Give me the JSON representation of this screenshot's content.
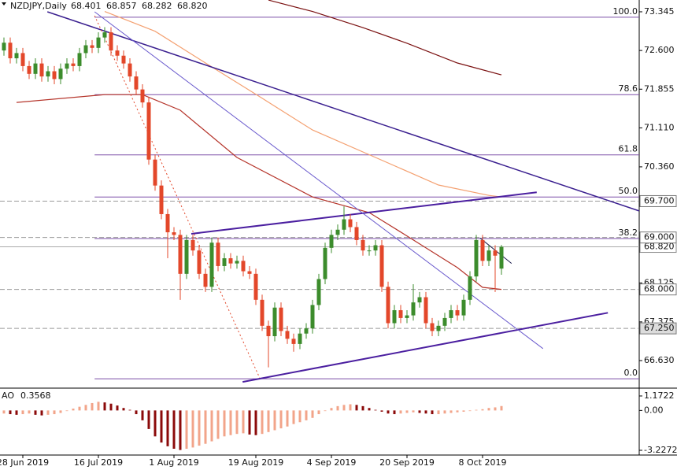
{
  "chart_data": {
    "type": "candlestick",
    "header": {
      "symbol": "NZDJPY,Daily",
      "quote": [
        "68.401",
        "68.857",
        "68.282",
        "68.820"
      ]
    },
    "up_color": "#3c8c2c",
    "down_color": "#e3472a",
    "open": [
      72.6,
      72.75,
      72.45,
      72.55,
      72.3,
      72.15,
      72.35,
      72.1,
      72.2,
      72.05,
      72.25,
      72.35,
      72.3,
      72.55,
      72.7,
      72.65,
      72.85,
      72.95,
      72.6,
      72.5,
      72.35,
      72.1,
      71.85,
      71.6,
      70.5,
      70.0,
      69.45,
      69.1,
      69.05,
      68.3,
      68.95,
      68.75,
      68.3,
      68.05,
      68.9,
      68.45,
      68.6,
      68.5,
      68.55,
      68.35,
      68.3,
      67.8,
      67.3,
      67.1,
      67.65,
      67.2,
      67.05,
      66.95,
      67.15,
      67.25,
      67.7,
      68.2,
      68.8,
      69.05,
      69.15,
      69.35,
      69.2,
      68.95,
      68.75,
      68.75,
      68.85,
      68.05,
      67.35,
      67.6,
      67.45,
      67.5,
      67.75,
      67.85,
      67.35,
      67.2,
      67.3,
      67.45,
      67.6,
      67.5,
      67.8,
      68.25,
      68.95,
      68.55,
      68.75,
      68.401
    ],
    "high": [
      72.85,
      72.85,
      72.65,
      72.65,
      72.4,
      72.45,
      72.45,
      72.3,
      72.3,
      72.35,
      72.45,
      72.45,
      72.65,
      72.8,
      72.8,
      72.95,
      73.05,
      73.05,
      72.7,
      72.6,
      72.45,
      72.2,
      71.95,
      71.7,
      70.6,
      70.1,
      69.55,
      69.2,
      69.15,
      69.05,
      69.05,
      68.85,
      68.4,
      69.0,
      69.0,
      68.7,
      68.7,
      68.65,
      68.65,
      68.45,
      68.4,
      67.9,
      67.4,
      67.75,
      67.75,
      67.3,
      67.15,
      67.25,
      67.35,
      67.8,
      68.3,
      68.9,
      69.15,
      69.25,
      69.6,
      69.45,
      69.3,
      69.05,
      68.85,
      68.95,
      68.95,
      68.15,
      67.7,
      67.7,
      67.6,
      68.1,
      67.95,
      67.95,
      67.45,
      67.4,
      67.55,
      67.7,
      67.7,
      67.9,
      68.35,
      69.05,
      69.05,
      68.85,
      68.85,
      68.857
    ],
    "low": [
      72.5,
      72.35,
      72.35,
      72.2,
      72.05,
      72.05,
      72.0,
      72.0,
      71.95,
      71.95,
      72.15,
      72.2,
      72.2,
      72.45,
      72.55,
      72.55,
      72.75,
      72.5,
      72.4,
      72.25,
      72.0,
      71.75,
      71.5,
      70.4,
      69.9,
      69.35,
      68.6,
      68.95,
      67.8,
      68.2,
      68.65,
      68.2,
      67.95,
      67.95,
      68.35,
      68.35,
      68.4,
      68.4,
      68.25,
      68.2,
      67.7,
      67.2,
      66.5,
      67.0,
      67.1,
      66.95,
      66.8,
      66.85,
      67.05,
      67.15,
      67.6,
      68.1,
      68.7,
      68.95,
      69.05,
      69.1,
      68.85,
      68.65,
      68.65,
      68.65,
      67.95,
      67.25,
      67.25,
      67.35,
      67.35,
      67.4,
      67.65,
      67.25,
      67.1,
      67.1,
      67.2,
      67.35,
      67.4,
      67.4,
      67.7,
      68.15,
      68.45,
      68.45,
      67.95,
      68.282
    ],
    "close": [
      72.75,
      72.45,
      72.55,
      72.3,
      72.15,
      72.35,
      72.1,
      72.2,
      72.05,
      72.25,
      72.35,
      72.3,
      72.55,
      72.7,
      72.65,
      72.85,
      72.95,
      72.6,
      72.5,
      72.35,
      72.1,
      71.85,
      71.6,
      70.5,
      70.0,
      69.45,
      69.1,
      69.05,
      68.3,
      68.95,
      68.75,
      68.3,
      68.05,
      68.9,
      68.45,
      68.6,
      68.5,
      68.55,
      68.35,
      68.3,
      67.8,
      67.3,
      67.1,
      67.65,
      67.2,
      67.05,
      66.95,
      67.15,
      67.25,
      67.7,
      68.2,
      68.8,
      69.05,
      69.15,
      69.35,
      69.2,
      68.95,
      68.75,
      68.75,
      68.85,
      68.05,
      67.35,
      67.6,
      67.45,
      67.5,
      67.75,
      67.85,
      67.35,
      67.2,
      67.3,
      67.45,
      67.6,
      67.5,
      67.8,
      68.25,
      68.95,
      68.55,
      68.75,
      68.65,
      68.82
    ],
    "ylim": [
      66.115,
      73.572
    ],
    "yticks": [
      73.345,
      {
        "value": 72.6,
        "label": "72.600"
      },
      71.855,
      {
        "value": 71.11,
        "label": "71.110"
      },
      {
        "value": 70.36,
        "label": "70.360"
      },
      68.125,
      67.375,
      {
        "value": 66.63,
        "label": "66.630"
      }
    ],
    "xticks": [
      {
        "value": 3,
        "label": "28 Jun 2019"
      },
      {
        "value": 15,
        "label": "16 Jul 2019"
      },
      {
        "value": 27,
        "label": "1 Aug 2019"
      },
      {
        "value": 40,
        "label": "19 Aug 2019"
      },
      {
        "value": 52,
        "label": "4 Sep 2019"
      },
      {
        "value": 64,
        "label": "20 Sep 2019"
      },
      {
        "value": 76,
        "label": "8 Oct 2019"
      }
    ],
    "level_lines": [
      {
        "value": 69.7,
        "label": "69.700"
      },
      {
        "value": 69.0,
        "label": "69.000"
      },
      {
        "value": 68.0,
        "label": "68.000"
      },
      {
        "value": 67.25,
        "label": "67.250"
      }
    ],
    "price_line": {
      "value": 68.82,
      "label": "68.820"
    },
    "moving_averages": [
      {
        "color": "#b5342a",
        "x": [
          2,
          16,
          22,
          28,
          37,
          49,
          58,
          64,
          72,
          76,
          79
        ],
        "values": [
          71.6,
          71.75,
          71.75,
          71.45,
          70.54,
          69.78,
          69.48,
          69.03,
          68.42,
          68.04,
          68.0
        ]
      },
      {
        "color": "#f4a070",
        "x": [
          16,
          24,
          32,
          41,
          49,
          59,
          69,
          77,
          79
        ],
        "values": [
          73.35,
          72.97,
          72.36,
          71.68,
          71.07,
          70.54,
          70.01,
          69.81,
          69.78
        ]
      },
      {
        "color": "#7a1010",
        "x": [
          42,
          49,
          57,
          64,
          72,
          79
        ],
        "values": [
          73.57,
          73.35,
          73.04,
          72.74,
          72.36,
          72.13
        ]
      }
    ],
    "trendlines": [
      {
        "color": "#3a1f8f",
        "width": 1.5,
        "x": [
          6.9,
          100.9
        ],
        "values": [
          73.345,
          69.51
        ]
      },
      {
        "color": "#4b1fa0",
        "width": 2,
        "x": [
          29.75,
          84.6
        ],
        "values": [
          69.07,
          69.87
        ]
      },
      {
        "color": "#4b1fa0",
        "width": 2,
        "x": [
          37.9,
          95.9
        ],
        "values": [
          66.22,
          67.55
        ]
      },
      {
        "color": "#6a5acd",
        "width": 1,
        "x": [
          14.4,
          85.6
        ],
        "values": [
          73.345,
          66.86
        ]
      },
      {
        "color": "#e3472a",
        "width": 1,
        "dash": "2,3",
        "x": [
          14.4,
          40.6
        ],
        "values": [
          73.27,
          66.3
        ]
      },
      {
        "color": "#1a1a4a",
        "width": 1,
        "x": [
          75.6,
          80.6
        ],
        "values": [
          68.99,
          68.5
        ]
      }
    ],
    "fibonacci": {
      "color": "#7b4fa8",
      "x_start": 14.4,
      "levels": [
        {
          "value": 100,
          "label": "100.0"
        },
        {
          "value": 78.6,
          "label": "78.6"
        },
        {
          "value": 61.8,
          "label": "61.8"
        },
        {
          "value": 50,
          "label": "50.0"
        },
        {
          "value": 38.2,
          "label": "38.2"
        },
        {
          "value": 0,
          "label": "0.0"
        }
      ],
      "prices": [
        73.24,
        71.75,
        70.59,
        69.78,
        68.98,
        66.28
      ]
    },
    "oscillator": {
      "name": "AO",
      "up_color": "#f2a48a",
      "down_color": "#8b0a0a",
      "values": [
        -0.25,
        -0.3,
        -0.35,
        -0.3,
        -0.25,
        -0.35,
        -0.4,
        -0.35,
        -0.3,
        -0.2,
        -0.05,
        0.15,
        0.3,
        0.45,
        0.6,
        0.7,
        0.65,
        0.55,
        0.4,
        0.2,
        0.05,
        -0.3,
        -0.8,
        -1.5,
        -2.1,
        -2.6,
        -2.9,
        -3.1,
        -3.2,
        -3.1,
        -3.0,
        -2.85,
        -2.7,
        -2.5,
        -2.3,
        -2.1,
        -2.0,
        -1.9,
        -1.85,
        -1.95,
        -2.0,
        -1.9,
        -1.75,
        -1.6,
        -1.45,
        -1.3,
        -1.1,
        -0.95,
        -0.8,
        -0.6,
        -0.3,
        -0.05,
        0.2,
        0.35,
        0.45,
        0.5,
        0.45,
        0.35,
        0.2,
        0.05,
        -0.1,
        -0.25,
        -0.3,
        -0.25,
        -0.2,
        -0.15,
        -0.2,
        -0.25,
        -0.3,
        -0.3,
        -0.25,
        -0.2,
        -0.15,
        -0.1,
        -0.05,
        0.05,
        0.1,
        0.2,
        0.25,
        0.3568
      ],
      "ylim": [
        -3.61,
        1.68
      ],
      "yticks": [
        1.1722,
        {
          "value": 0,
          "label": "0.00"
        },
        -3.2272
      ]
    }
  }
}
